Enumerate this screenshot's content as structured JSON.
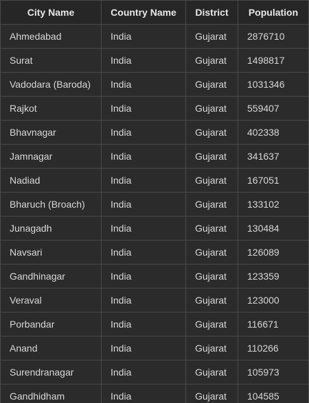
{
  "table": {
    "headers": [
      "City Name",
      "Country Name",
      "District",
      "Population"
    ],
    "rows": [
      [
        "Ahmedabad",
        "India",
        "Gujarat",
        "2876710"
      ],
      [
        "Surat",
        "India",
        "Gujarat",
        "1498817"
      ],
      [
        "Vadodara (Baroda)",
        "India",
        "Gujarat",
        "1031346"
      ],
      [
        "Rajkot",
        "India",
        "Gujarat",
        "559407"
      ],
      [
        "Bhavnagar",
        "India",
        "Gujarat",
        "402338"
      ],
      [
        "Jamnagar",
        "India",
        "Gujarat",
        "341637"
      ],
      [
        "Nadiad",
        "India",
        "Gujarat",
        "167051"
      ],
      [
        "Bharuch (Broach)",
        "India",
        "Gujarat",
        "133102"
      ],
      [
        "Junagadh",
        "India",
        "Gujarat",
        "130484"
      ],
      [
        "Navsari",
        "India",
        "Gujarat",
        "126089"
      ],
      [
        "Gandhinagar",
        "India",
        "Gujarat",
        "123359"
      ],
      [
        "Veraval",
        "India",
        "Gujarat",
        "123000"
      ],
      [
        "Porbandar",
        "India",
        "Gujarat",
        "116671"
      ],
      [
        "Anand",
        "India",
        "Gujarat",
        "110266"
      ],
      [
        "Surendranagar",
        "India",
        "Gujarat",
        "105973"
      ],
      [
        "Gandhidham",
        "India",
        "Gujarat",
        "104585"
      ]
    ]
  }
}
